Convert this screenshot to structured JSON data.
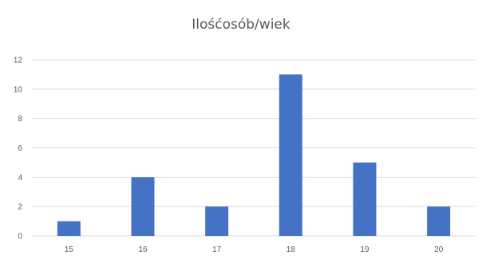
{
  "chart_data": {
    "type": "bar",
    "title": "Ilośćosób/wiek",
    "xlabel": "",
    "ylabel": "",
    "categories": [
      "15",
      "16",
      "17",
      "18",
      "19",
      "20"
    ],
    "values": [
      1,
      4,
      2,
      11,
      5,
      2
    ],
    "ylim": [
      0,
      12
    ],
    "yticks": [
      0,
      2,
      4,
      6,
      8,
      10,
      12
    ],
    "grid": true,
    "legend": "none",
    "bar_color": "#4472c4"
  }
}
